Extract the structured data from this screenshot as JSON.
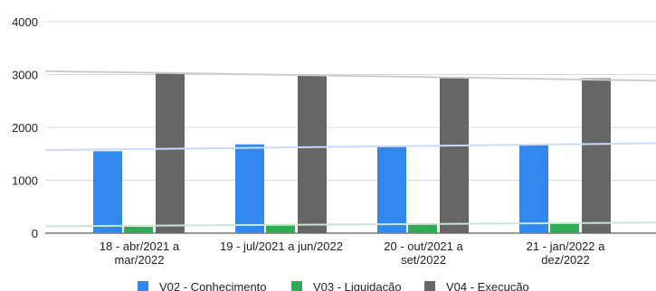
{
  "chart_data": {
    "type": "bar",
    "categories": [
      [
        "18 - abr/2021 a",
        "mar/2022"
      ],
      [
        "19 - jul/2021 a jun/2022"
      ],
      [
        "20 - out/2021 a",
        "set/2022"
      ],
      [
        "21 - jan/2022 a",
        "dez/2022"
      ]
    ],
    "series": [
      {
        "name": "V02 - Conhecimento",
        "color": "#3388ee",
        "values": [
          1550,
          1680,
          1630,
          1670
        ]
      },
      {
        "name": "V03 - Liquidação",
        "color": "#33aa55",
        "values": [
          120,
          160,
          175,
          180
        ]
      },
      {
        "name": "V04 - Execução",
        "color": "#666666",
        "values": [
          3040,
          2990,
          2930,
          2930
        ]
      }
    ],
    "trendlines": [
      {
        "series": "V02 - Conhecimento",
        "color": "#c9dafa",
        "start": 1570,
        "end": 1700
      },
      {
        "series": "V03 - Liquidação",
        "color": "#c5e8ce",
        "start": 130,
        "end": 200
      },
      {
        "series": "V04 - Execução",
        "color": "#cccccc",
        "start": 3065,
        "end": 2885
      }
    ],
    "yticks": [
      0,
      1000,
      2000,
      3000,
      4000
    ],
    "ylim": [
      0,
      4000
    ],
    "grid": true,
    "legend": "bottom",
    "title": "",
    "xlabel": "",
    "ylabel": ""
  }
}
